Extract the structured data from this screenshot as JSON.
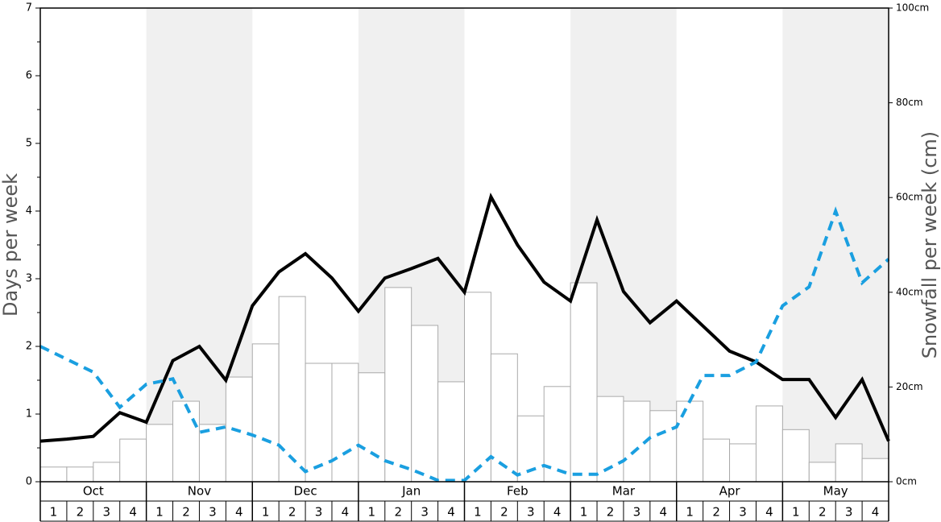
{
  "chart_data": {
    "type": "combo",
    "y_label": "Days per week",
    "y2_label": "Snowfall per week (cm)",
    "months": [
      "Oct",
      "Nov",
      "Dec",
      "Jan",
      "Feb",
      "Mar",
      "Apr",
      "May"
    ],
    "week_labels": [
      "1",
      "2",
      "3",
      "4"
    ],
    "ylim": [
      0,
      7
    ],
    "yticks": [
      0,
      1,
      2,
      3,
      4,
      5,
      6,
      7
    ],
    "y2lim": [
      0,
      100
    ],
    "y2ticks": [
      {
        "value": 0,
        "label": "0cm"
      },
      {
        "value": 20,
        "label": "20cm"
      },
      {
        "value": 40,
        "label": "40cm"
      },
      {
        "value": 60,
        "label": "60cm"
      },
      {
        "value": 80,
        "label": "80cm"
      },
      {
        "value": 100,
        "label": "100cm"
      }
    ],
    "series": [
      {
        "type": "bar",
        "axis": "y2",
        "color": "#ffffff",
        "edge_color": "#aaaaaa",
        "values": [
          3.1,
          3.1,
          4.1,
          9,
          12.1,
          17,
          12.1,
          22.1,
          29.1,
          39.1,
          25,
          25,
          23,
          41,
          33,
          21.1,
          40,
          27,
          13.9,
          20.1,
          42,
          18,
          17,
          15,
          17,
          9,
          8,
          16,
          11,
          4.1,
          8,
          4.9
        ]
      },
      {
        "type": "line",
        "color": "#000000",
        "values": [
          0.6,
          0.63,
          0.67,
          1.02,
          0.88,
          1.79,
          2.0,
          1.5,
          2.6,
          3.1,
          3.37,
          3.01,
          2.52,
          3.01,
          3.15,
          3.3,
          2.8,
          4.21,
          3.5,
          2.95,
          2.67,
          3.87,
          2.81,
          2.35,
          2.67,
          2.3,
          1.93,
          1.77,
          1.51,
          1.51,
          0.95,
          1.51,
          0.6
        ]
      },
      {
        "type": "line",
        "color": "#1a9fe0",
        "dashed": true,
        "values": [
          2.0,
          1.81,
          1.62,
          1.1,
          1.44,
          1.52,
          0.73,
          0.81,
          0.69,
          0.54,
          0.15,
          0.31,
          0.54,
          0.31,
          0.18,
          0.02,
          0.02,
          0.37,
          0.1,
          0.24,
          0.11,
          0.11,
          0.31,
          0.65,
          0.81,
          1.57,
          1.57,
          1.77,
          2.6,
          2.88,
          4.0,
          2.94,
          3.29
        ]
      }
    ]
  }
}
